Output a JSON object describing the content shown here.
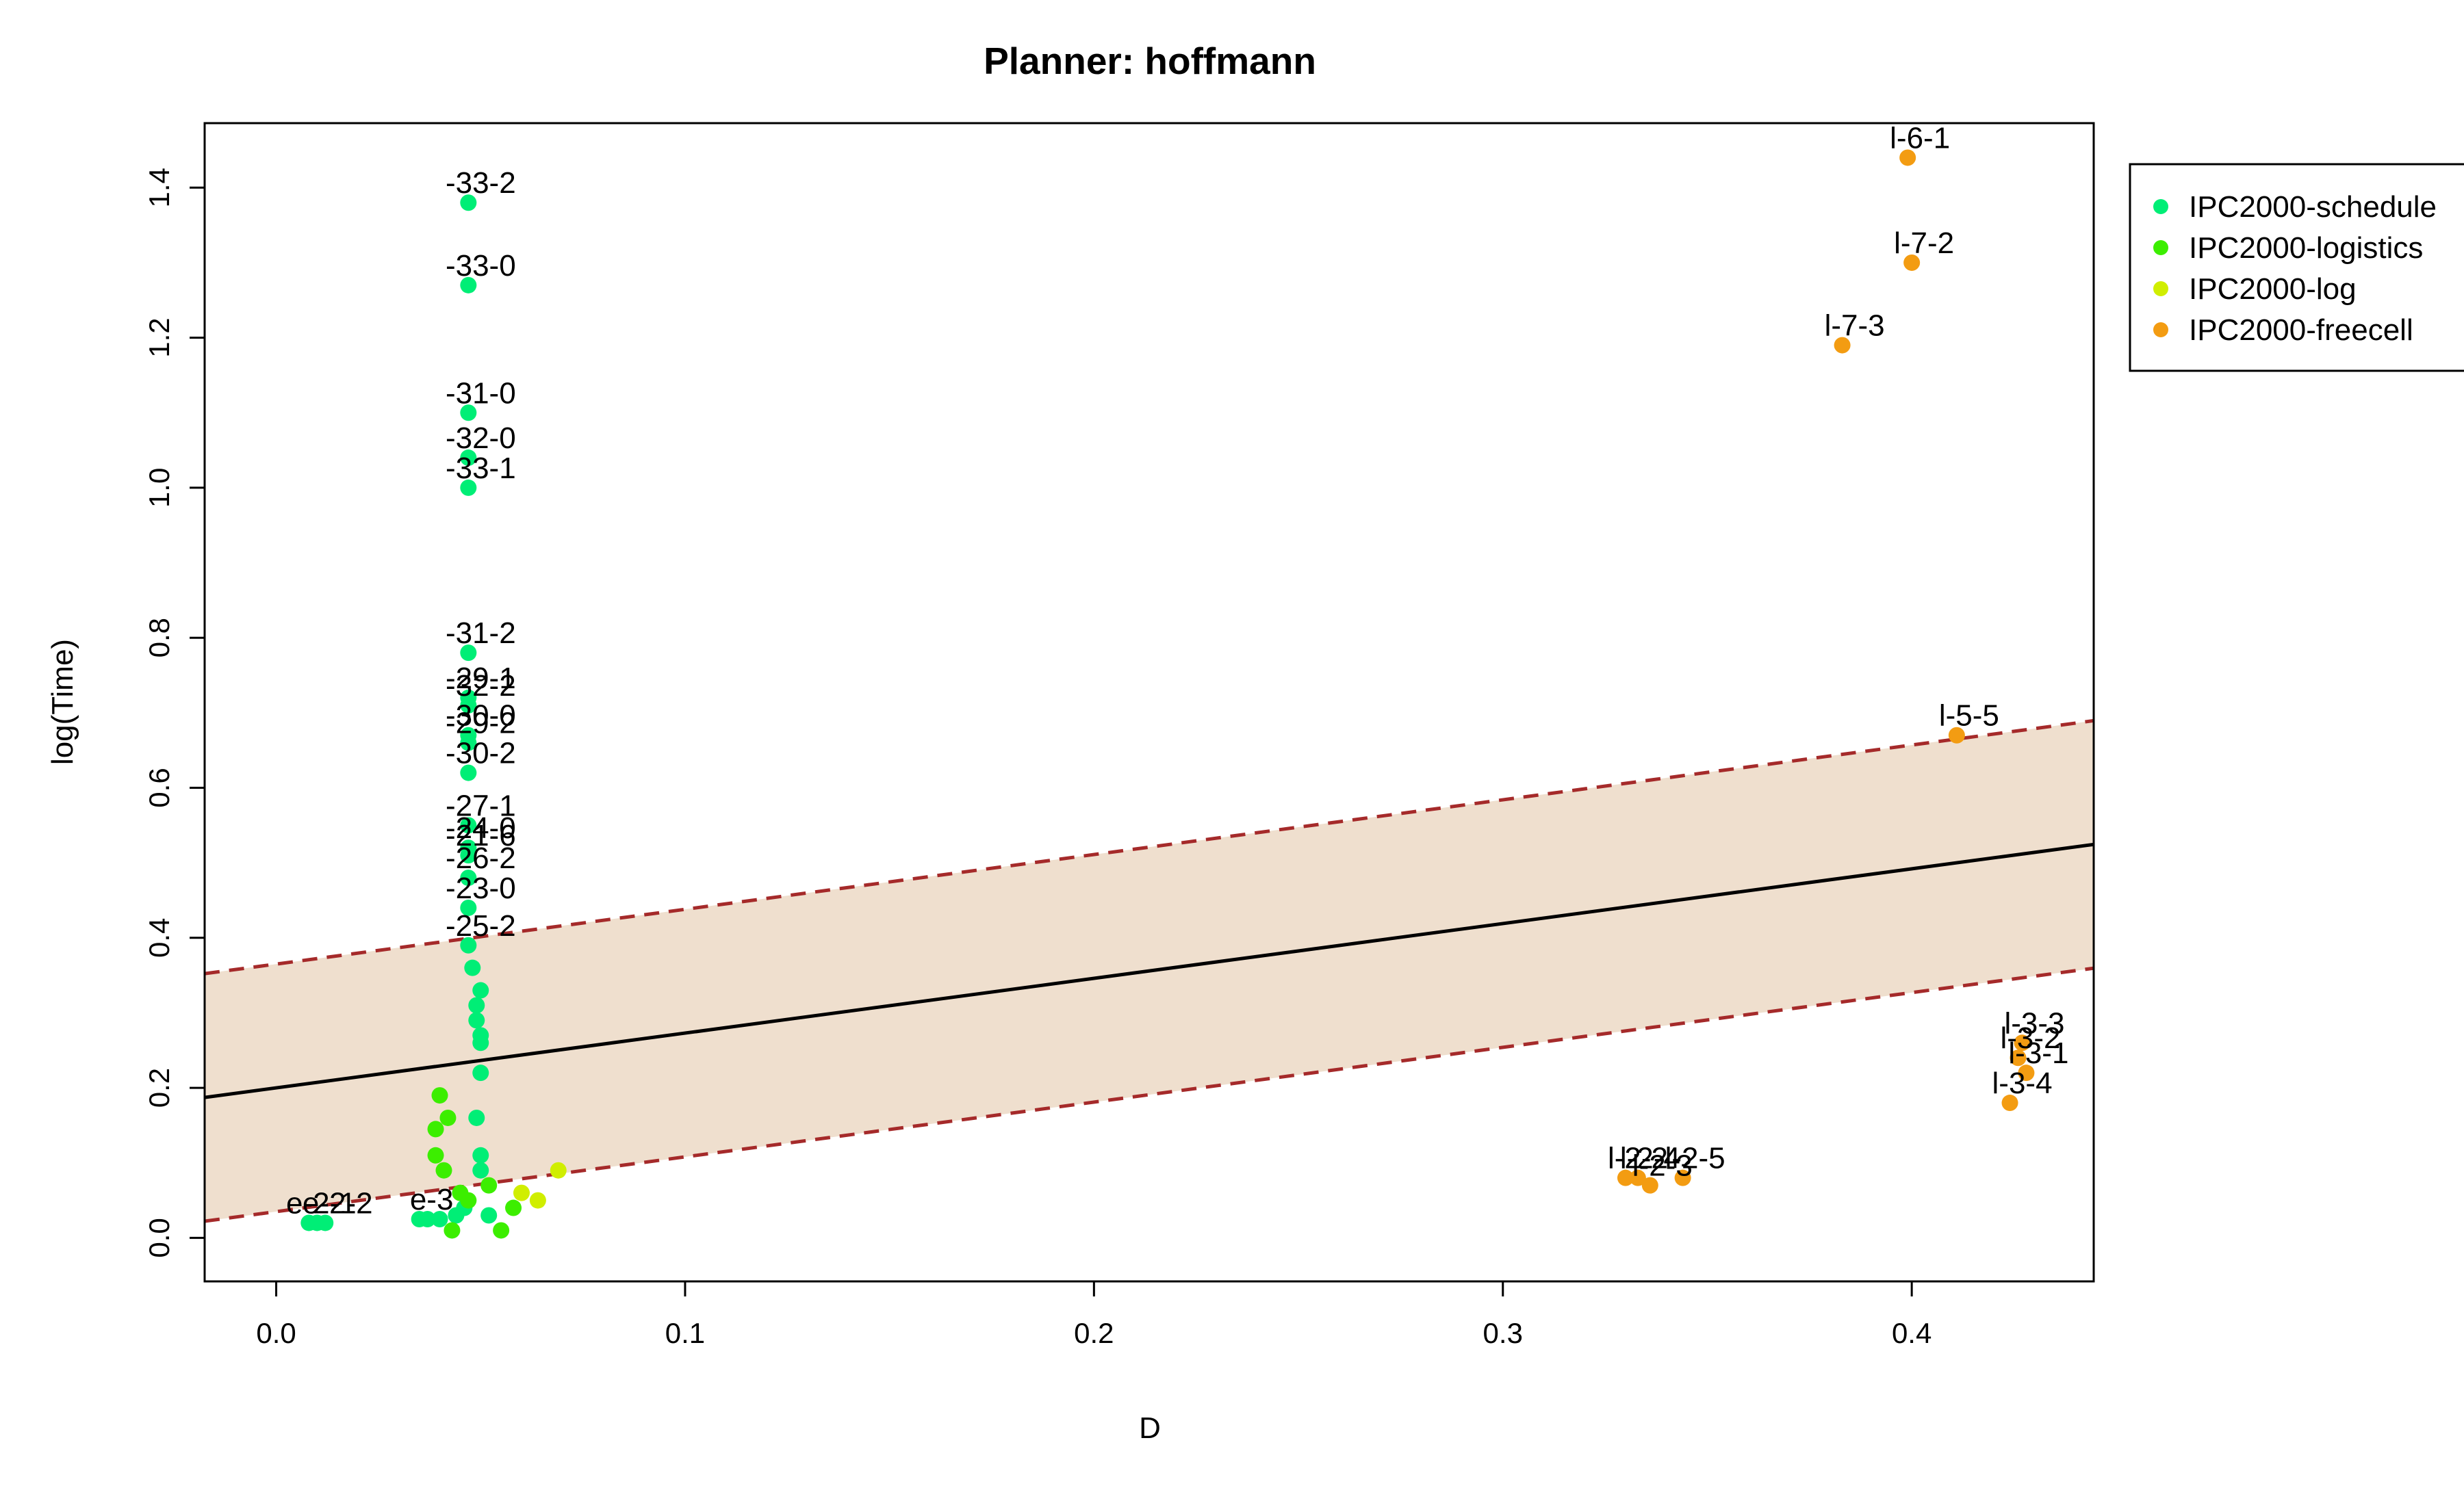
{
  "chart_data": {
    "type": "scatter",
    "title": "Planner: hoffmann",
    "xlabel": "D",
    "ylabel": "log(Time)",
    "xlim": [
      -0.0175,
      0.4445
    ],
    "ylim": [
      -0.058,
      1.486
    ],
    "x_ticks": [
      {
        "value": 0.0,
        "label": "0.0"
      },
      {
        "value": 0.1,
        "label": "0.1"
      },
      {
        "value": 0.2,
        "label": "0.2"
      },
      {
        "value": 0.3,
        "label": "0.3"
      },
      {
        "value": 0.4,
        "label": "0.4"
      }
    ],
    "y_ticks": [
      {
        "value": 0.0,
        "label": "0.0"
      },
      {
        "value": 0.2,
        "label": "0.2"
      },
      {
        "value": 0.4,
        "label": "0.4"
      },
      {
        "value": 0.6,
        "label": "0.6"
      },
      {
        "value": 0.8,
        "label": "0.8"
      },
      {
        "value": 1.0,
        "label": "1.0"
      },
      {
        "value": 1.2,
        "label": "1.2"
      },
      {
        "value": 1.4,
        "label": "1.4"
      }
    ],
    "grid": false,
    "legend_position": "top-right",
    "regression": {
      "intercept": 0.2,
      "slope": 0.73,
      "band": 0.165
    },
    "colors": {
      "regression_line": "#000000",
      "band_fill": "#efdfce",
      "band_edge": "#a52a2a"
    },
    "series": [
      {
        "name": "IPC2000-schedule",
        "color": "#00ee76",
        "points": [
          {
            "x": 0.047,
            "y": 1.38,
            "label": "-33-2"
          },
          {
            "x": 0.047,
            "y": 1.27,
            "label": "-33-0"
          },
          {
            "x": 0.047,
            "y": 1.1,
            "label": "-31-0"
          },
          {
            "x": 0.047,
            "y": 1.04,
            "label": "-32-0"
          },
          {
            "x": 0.047,
            "y": 1.0,
            "label": "-33-1"
          },
          {
            "x": 0.047,
            "y": 0.78,
            "label": "-31-2"
          },
          {
            "x": 0.047,
            "y": 0.72,
            "label": "-29-1"
          },
          {
            "x": 0.047,
            "y": 0.71,
            "label": "-32-2"
          },
          {
            "x": 0.047,
            "y": 0.67,
            "label": "-30-0"
          },
          {
            "x": 0.047,
            "y": 0.66,
            "label": "-29-2"
          },
          {
            "x": 0.047,
            "y": 0.62,
            "label": "-30-2"
          },
          {
            "x": 0.047,
            "y": 0.55,
            "label": "-27-1"
          },
          {
            "x": 0.047,
            "y": 0.52,
            "label": "-24-0"
          },
          {
            "x": 0.047,
            "y": 0.51,
            "label": "-21-6"
          },
          {
            "x": 0.047,
            "y": 0.48,
            "label": "-26-2"
          },
          {
            "x": 0.047,
            "y": 0.44,
            "label": "-23-0"
          },
          {
            "x": 0.047,
            "y": 0.39,
            "label": "-25-2"
          },
          {
            "x": 0.048,
            "y": 0.36,
            "label": ""
          },
          {
            "x": 0.05,
            "y": 0.33,
            "label": ""
          },
          {
            "x": 0.049,
            "y": 0.31,
            "label": ""
          },
          {
            "x": 0.049,
            "y": 0.29,
            "label": ""
          },
          {
            "x": 0.05,
            "y": 0.27,
            "label": ""
          },
          {
            "x": 0.05,
            "y": 0.26,
            "label": ""
          },
          {
            "x": 0.05,
            "y": 0.22,
            "label": ""
          },
          {
            "x": 0.049,
            "y": 0.16,
            "label": ""
          },
          {
            "x": 0.05,
            "y": 0.11,
            "label": ""
          },
          {
            "x": 0.05,
            "y": 0.09,
            "label": ""
          },
          {
            "x": 0.008,
            "y": 0.02,
            "label": "e-2-1"
          },
          {
            "x": 0.01,
            "y": 0.02,
            "label": ""
          },
          {
            "x": 0.012,
            "y": 0.02,
            "label": "e-2-2"
          },
          {
            "x": 0.035,
            "y": 0.025,
            "label": "e-3"
          },
          {
            "x": 0.037,
            "y": 0.025,
            "label": ""
          },
          {
            "x": 0.04,
            "y": 0.025,
            "label": ""
          },
          {
            "x": 0.044,
            "y": 0.03,
            "label": ""
          },
          {
            "x": 0.046,
            "y": 0.04,
            "label": ""
          },
          {
            "x": 0.052,
            "y": 0.03,
            "label": ""
          }
        ]
      },
      {
        "name": "IPC2000-logistics",
        "color": "#3cee00",
        "points": [
          {
            "x": 0.04,
            "y": 0.19,
            "label": ""
          },
          {
            "x": 0.042,
            "y": 0.16,
            "label": ""
          },
          {
            "x": 0.039,
            "y": 0.145,
            "label": ""
          },
          {
            "x": 0.039,
            "y": 0.11,
            "label": ""
          },
          {
            "x": 0.041,
            "y": 0.09,
            "label": ""
          },
          {
            "x": 0.043,
            "y": 0.01,
            "label": ""
          },
          {
            "x": 0.047,
            "y": 0.05,
            "label": ""
          },
          {
            "x": 0.052,
            "y": 0.07,
            "label": ""
          },
          {
            "x": 0.055,
            "y": 0.01,
            "label": ""
          },
          {
            "x": 0.058,
            "y": 0.04,
            "label": ""
          },
          {
            "x": 0.045,
            "y": 0.06,
            "label": ""
          }
        ]
      },
      {
        "name": "IPC2000-log",
        "color": "#d0ee00",
        "points": [
          {
            "x": 0.069,
            "y": 0.09,
            "label": ""
          },
          {
            "x": 0.064,
            "y": 0.05,
            "label": ""
          },
          {
            "x": 0.06,
            "y": 0.06,
            "label": ""
          }
        ]
      },
      {
        "name": "IPC2000-freecell",
        "color": "#f39c12",
        "points": [
          {
            "x": 0.399,
            "y": 1.44,
            "label": "l-6-1"
          },
          {
            "x": 0.4,
            "y": 1.3,
            "label": "l-7-2"
          },
          {
            "x": 0.383,
            "y": 1.19,
            "label": "l-7-3"
          },
          {
            "x": 0.411,
            "y": 0.67,
            "label": "l-5-5"
          },
          {
            "x": 0.427,
            "y": 0.26,
            "label": "l-3-3"
          },
          {
            "x": 0.426,
            "y": 0.24,
            "label": "l-3-2"
          },
          {
            "x": 0.428,
            "y": 0.22,
            "label": "l-3-1"
          },
          {
            "x": 0.424,
            "y": 0.18,
            "label": "l-3-4"
          },
          {
            "x": 0.33,
            "y": 0.08,
            "label": "l-2-2"
          },
          {
            "x": 0.333,
            "y": 0.08,
            "label": "l-2-4"
          },
          {
            "x": 0.336,
            "y": 0.07,
            "label": "l-2-3"
          },
          {
            "x": 0.344,
            "y": 0.08,
            "label": "l-2-5"
          }
        ]
      }
    ]
  }
}
